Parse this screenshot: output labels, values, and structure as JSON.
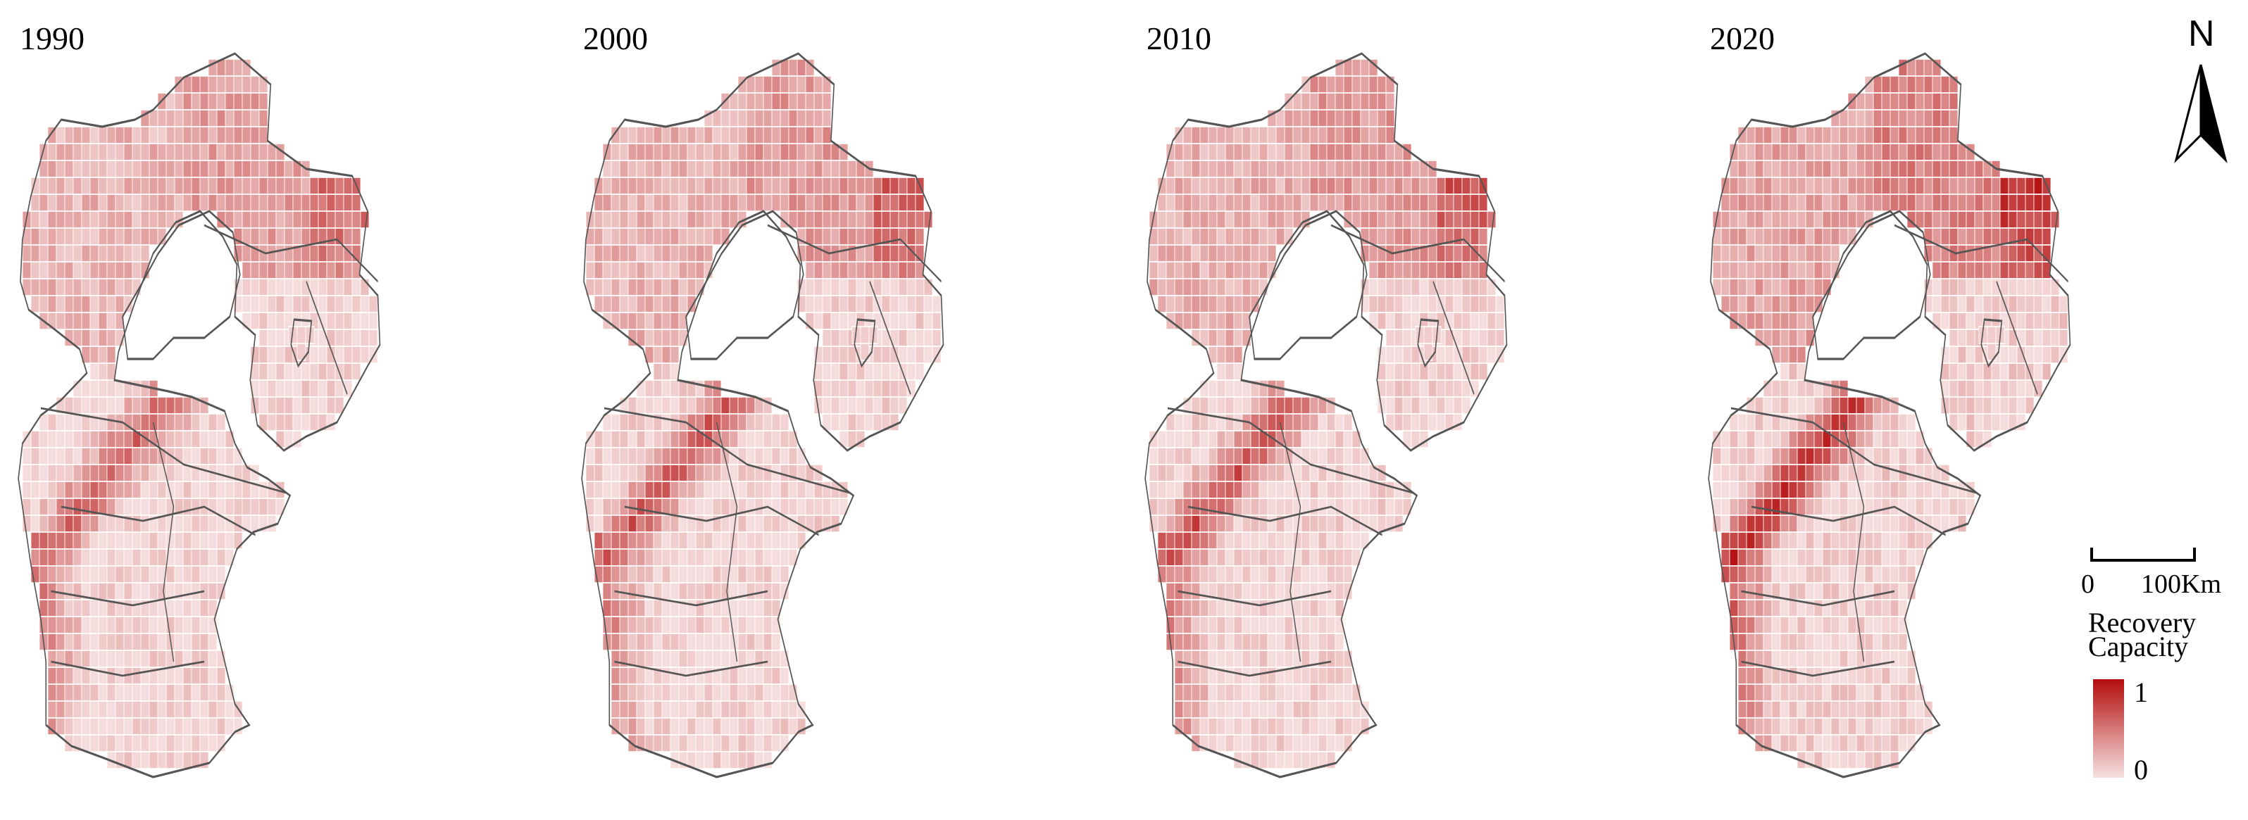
{
  "panels": [
    {
      "year": "1990",
      "intensity": 0.25
    },
    {
      "year": "2000",
      "intensity": 0.33
    },
    {
      "year": "2010",
      "intensity": 0.38
    },
    {
      "year": "2020",
      "intensity": 0.75
    }
  ],
  "north_arrow": {
    "label": "N"
  },
  "scale_bar": {
    "start_label": "0",
    "end_label": "100Km"
  },
  "legend": {
    "title_line1": "Recovery",
    "title_line2": "Capacity",
    "max_label": "1",
    "min_label": "0",
    "color_high": "#b40d0d",
    "color_low": "#f7e1e1"
  },
  "colors": {
    "boundary": "#555555",
    "grid_line": "#ffffff"
  }
}
